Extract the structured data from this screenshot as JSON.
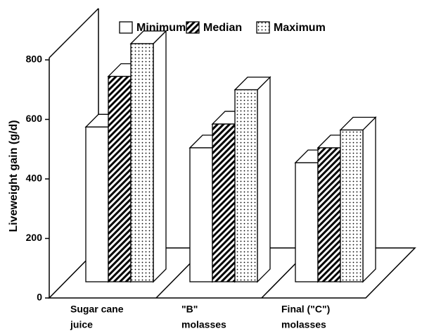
{
  "chart_data": {
    "type": "bar3d",
    "y_label": "Liveweight gain (g/d)",
    "categories": [
      [
        "Sugar cane",
        "juice"
      ],
      [
        "\"B\"",
        "molasses"
      ],
      [
        "Final (\"C\")",
        "molasses"
      ]
    ],
    "series": [
      {
        "name": "Minimum",
        "color": "#ffffff",
        "pattern": "solid",
        "values": [
          520,
          450,
          400
        ]
      },
      {
        "name": "Median",
        "color": "#000000",
        "pattern": "hatch",
        "values": [
          690,
          530,
          450
        ]
      },
      {
        "name": "Maximum",
        "color": "#000000",
        "pattern": "dots",
        "values": [
          800,
          645,
          510
        ]
      }
    ],
    "ylim": [
      0,
      800
    ],
    "yticks": [
      0,
      200,
      400,
      600,
      800
    ],
    "legend": "top"
  }
}
